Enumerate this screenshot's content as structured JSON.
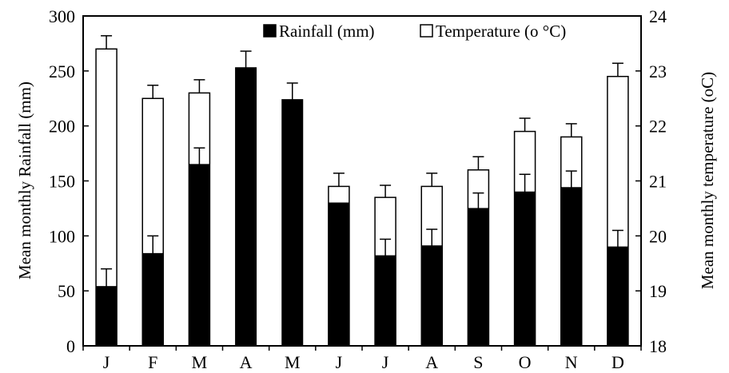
{
  "chart_data": {
    "type": "bar",
    "categories": [
      "J",
      "F",
      "M",
      "A",
      "M",
      "J",
      "J",
      "A",
      "S",
      "O",
      "N",
      "D"
    ],
    "ylabel": "Mean monthly  Rainfall (mm)",
    "y2label": "Mean monthly temperature (oC)",
    "ylim": [
      0,
      300
    ],
    "y2lim": [
      18,
      24
    ],
    "yticks": [
      0,
      50,
      100,
      150,
      200,
      250,
      300
    ],
    "y2ticks": [
      18,
      19,
      20,
      21,
      22,
      23,
      24
    ],
    "legend_position": "top-right",
    "grid": false,
    "series": [
      {
        "name": "Rainfall (mm)",
        "axis": "left",
        "color": "#000000",
        "values": [
          54,
          84,
          165,
          253,
          224,
          130,
          82,
          91,
          125,
          140,
          144,
          90
        ],
        "errors": [
          16,
          16,
          15,
          15,
          15,
          0,
          15,
          15,
          14,
          16,
          15,
          15
        ]
      },
      {
        "name": "Temperature (o °C)",
        "axis": "right",
        "color": "#ffffff",
        "values": [
          23.4,
          22.5,
          22.6,
          null,
          null,
          20.9,
          20.7,
          20.9,
          21.2,
          21.9,
          21.8,
          22.9
        ],
        "errors": [
          0.24,
          0.24,
          0.24,
          null,
          null,
          0.24,
          0.22,
          0.24,
          0.24,
          0.24,
          0.24,
          0.24
        ]
      }
    ]
  }
}
